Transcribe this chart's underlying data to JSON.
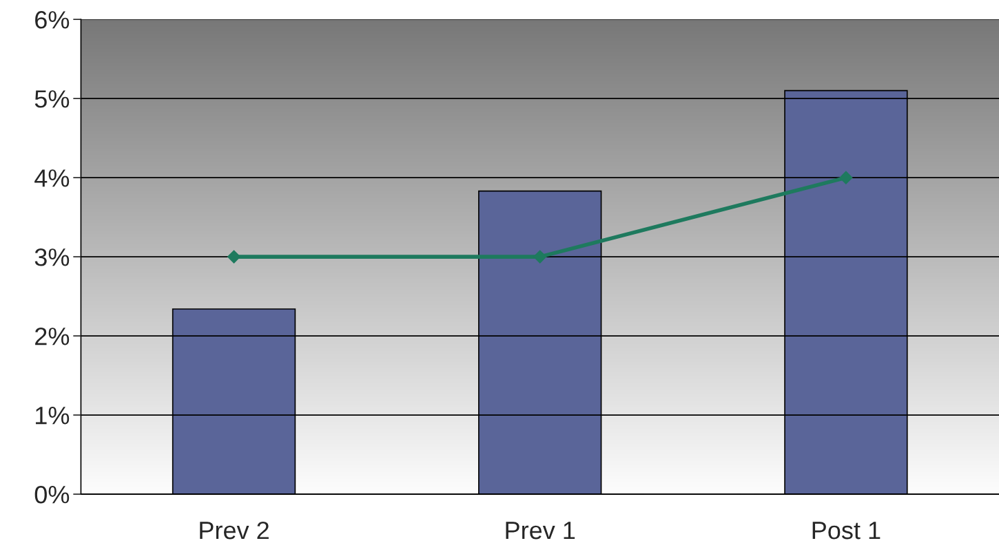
{
  "chart_data": {
    "type": "bar",
    "categories": [
      "Prev 2",
      "Prev 1",
      "Post 1"
    ],
    "series": [
      {
        "color": "#5a6599",
        "values": [
          2.34,
          3.83,
          5.1
        ]
      },
      {
        "type": "line",
        "color": "#1e7a5e",
        "values": [
          3,
          3,
          4
        ],
        "marker": "diamond"
      }
    ],
    "ylim": [
      0,
      6
    ],
    "yticks": [
      {
        "value": 0,
        "label": "0%"
      },
      {
        "value": 1,
        "label": "1%"
      },
      {
        "value": 2,
        "label": "2%"
      },
      {
        "value": 3,
        "label": "3%"
      },
      {
        "value": 4,
        "label": "4%"
      },
      {
        "value": 5,
        "label": "5%"
      },
      {
        "value": 6,
        "label": "6%"
      }
    ],
    "grid": "y",
    "legend": false
  }
}
